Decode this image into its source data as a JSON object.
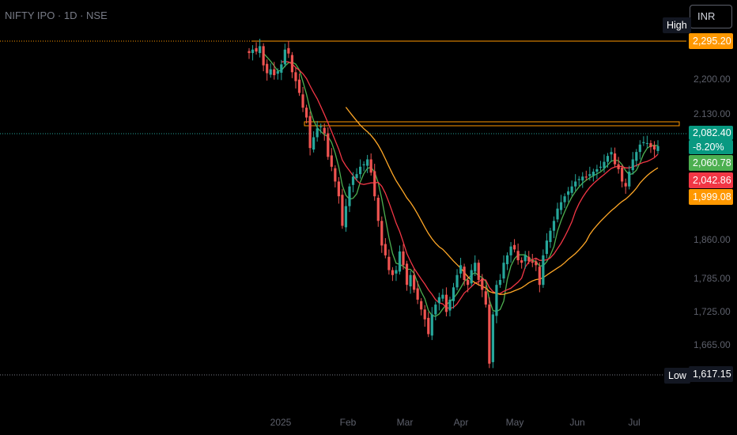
{
  "header": {
    "title": "NIFTY IPO · 1D · NSE",
    "currency": "INR"
  },
  "colors": {
    "up": "#26a69a",
    "down": "#ef5350",
    "orange": "#ff9800",
    "green_ma": "#4caf50",
    "red_ma": "#f23645",
    "yellow_ma": "#ffa726",
    "navy": "#131722"
  },
  "badges": {
    "high_label": "High",
    "high_value": "2,295.20",
    "low_label": "Low",
    "low_value": "1,617.15",
    "last_price": "2,082.40",
    "last_change": "-8.20%",
    "ma_green": "2,060.78",
    "ma_red": "2,042.86",
    "ma_orange": "1,999.08"
  },
  "chart_data": {
    "type": "candlestick",
    "title": "NIFTY IPO · 1D · NSE",
    "y_ticks": [
      "2,200.00",
      "2,130.00",
      "1,860.00",
      "1,785.00",
      "1,725.00",
      "1,665.00"
    ],
    "y_tick_values": [
      2200,
      2130,
      1860,
      1785,
      1725,
      1665
    ],
    "x_ticks": [
      "2025",
      "Feb",
      "Mar",
      "Apr",
      "May",
      "Jun",
      "Jul"
    ],
    "x_tick_indices": [
      7,
      30,
      50,
      70,
      89,
      111,
      130
    ],
    "ylim": [
      1600,
      2330
    ],
    "high": 2295.2,
    "low": 1617.15,
    "resistance_level": 2135,
    "last": 2082.4,
    "moving_averages": [
      {
        "color": "green",
        "last": 2060.78
      },
      {
        "color": "red",
        "last": 2042.86
      },
      {
        "color": "orange",
        "last": 1999.08
      }
    ],
    "closes": [
      2271,
      2278,
      2274,
      2285,
      2246,
      2230,
      2238,
      2226,
      2234,
      2248,
      2278,
      2270,
      2232,
      2214,
      2190,
      2160,
      2140,
      2078,
      2100,
      2118,
      2122,
      2108,
      2060,
      2040,
      2010,
      1980,
      1920,
      1960,
      2000,
      2020,
      2025,
      2040,
      2045,
      2055,
      2028,
      1980,
      1930,
      1880,
      1860,
      1830,
      1820,
      1830,
      1868,
      1840,
      1800,
      1820,
      1790,
      1770,
      1750,
      1730,
      1700,
      1740,
      1760,
      1775,
      1780,
      1745,
      1770,
      1795,
      1820,
      1840,
      1810,
      1800,
      1830,
      1845,
      1810,
      1790,
      1760,
      1640,
      1740,
      1800,
      1810,
      1845,
      1860,
      1878,
      1872,
      1850,
      1845,
      1860,
      1848,
      1845,
      1840,
      1800,
      1860,
      1890,
      1910,
      1930,
      1955,
      1968,
      1980,
      1990,
      2000,
      2010,
      2015,
      2020,
      2018,
      2025,
      2030,
      2035,
      2040,
      2050,
      2062,
      2070,
      2045,
      2035,
      2010,
      2000,
      2030,
      2055,
      2070,
      2085,
      2090,
      2088,
      2080,
      2075,
      2082
    ]
  }
}
